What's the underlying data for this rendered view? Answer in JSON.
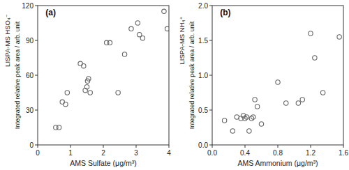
{
  "chart_data": [
    {
      "type": "scatter",
      "title": "(a)",
      "xlabel": "AMS Sulfate (μg/m³)",
      "ylabel": "Integrated relative peak area / arb. unit",
      "annotations": [
        {
          "text": "LISPA-MS HSO₄⁻"
        }
      ],
      "x": [
        0.55,
        0.65,
        0.75,
        0.85,
        0.9,
        1.3,
        1.4,
        1.45,
        1.5,
        1.52,
        1.55,
        1.6,
        2.1,
        2.2,
        2.45,
        2.65,
        2.85,
        3.05,
        3.1,
        3.2,
        3.85,
        3.95
      ],
      "values": [
        15,
        15,
        37,
        35,
        45,
        70,
        68,
        47,
        50,
        55,
        57,
        45,
        88,
        88,
        45,
        78,
        100,
        105,
        95,
        92,
        115,
        100
      ],
      "color": "#666666",
      "xlim": [
        0,
        4
      ],
      "ylim": [
        0,
        120
      ],
      "xticks": [
        0,
        1,
        2,
        3,
        4
      ],
      "yticks": [
        0,
        30,
        60,
        90,
        120
      ]
    },
    {
      "type": "scatter",
      "title": "(b)",
      "xlabel": "AMS Ammonium (μg/m³)",
      "ylabel": "Integrated relative peak area / arb. unit",
      "annotations": [
        {
          "text": "LISPA-MS NH₄⁺"
        }
      ],
      "x": [
        0.15,
        0.25,
        0.3,
        0.35,
        0.38,
        0.4,
        0.42,
        0.45,
        0.48,
        0.5,
        0.52,
        0.55,
        0.6,
        0.8,
        0.9,
        1.05,
        1.1,
        1.2,
        1.25,
        1.35,
        1.55
      ],
      "values": [
        0.35,
        0.2,
        0.4,
        0.38,
        0.42,
        0.38,
        0.4,
        0.2,
        0.38,
        0.4,
        0.65,
        0.55,
        0.3,
        0.9,
        0.6,
        0.6,
        0.65,
        1.6,
        1.25,
        0.75,
        1.55
      ],
      "color": "#666666",
      "xlim": [
        0.0,
        1.6
      ],
      "ylim": [
        0.0,
        2.0
      ],
      "xticks": [
        {
          "value": 0.0,
          "label": "0.0"
        },
        0.4,
        0.8,
        1.2,
        1.6
      ],
      "yticks": [
        {
          "value": 0.0,
          "label": "0.0"
        },
        0.5,
        {
          "value": 1.0,
          "label": "1.0"
        },
        1.5,
        {
          "value": 2.0,
          "label": "2.0"
        }
      ]
    }
  ]
}
